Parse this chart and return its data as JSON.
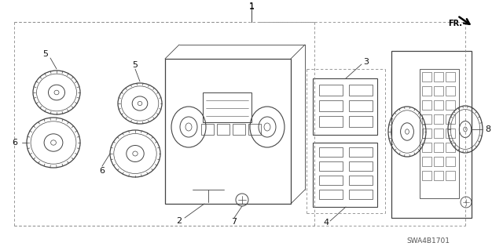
{
  "bg_color": "#ffffff",
  "lc": "#444444",
  "lc_light": "#888888",
  "lc_mid": "#666666",
  "label_color": "#111111",
  "diagram_id": "SWA4B1701",
  "fig_w": 6.4,
  "fig_h": 3.19,
  "dpi": 100
}
